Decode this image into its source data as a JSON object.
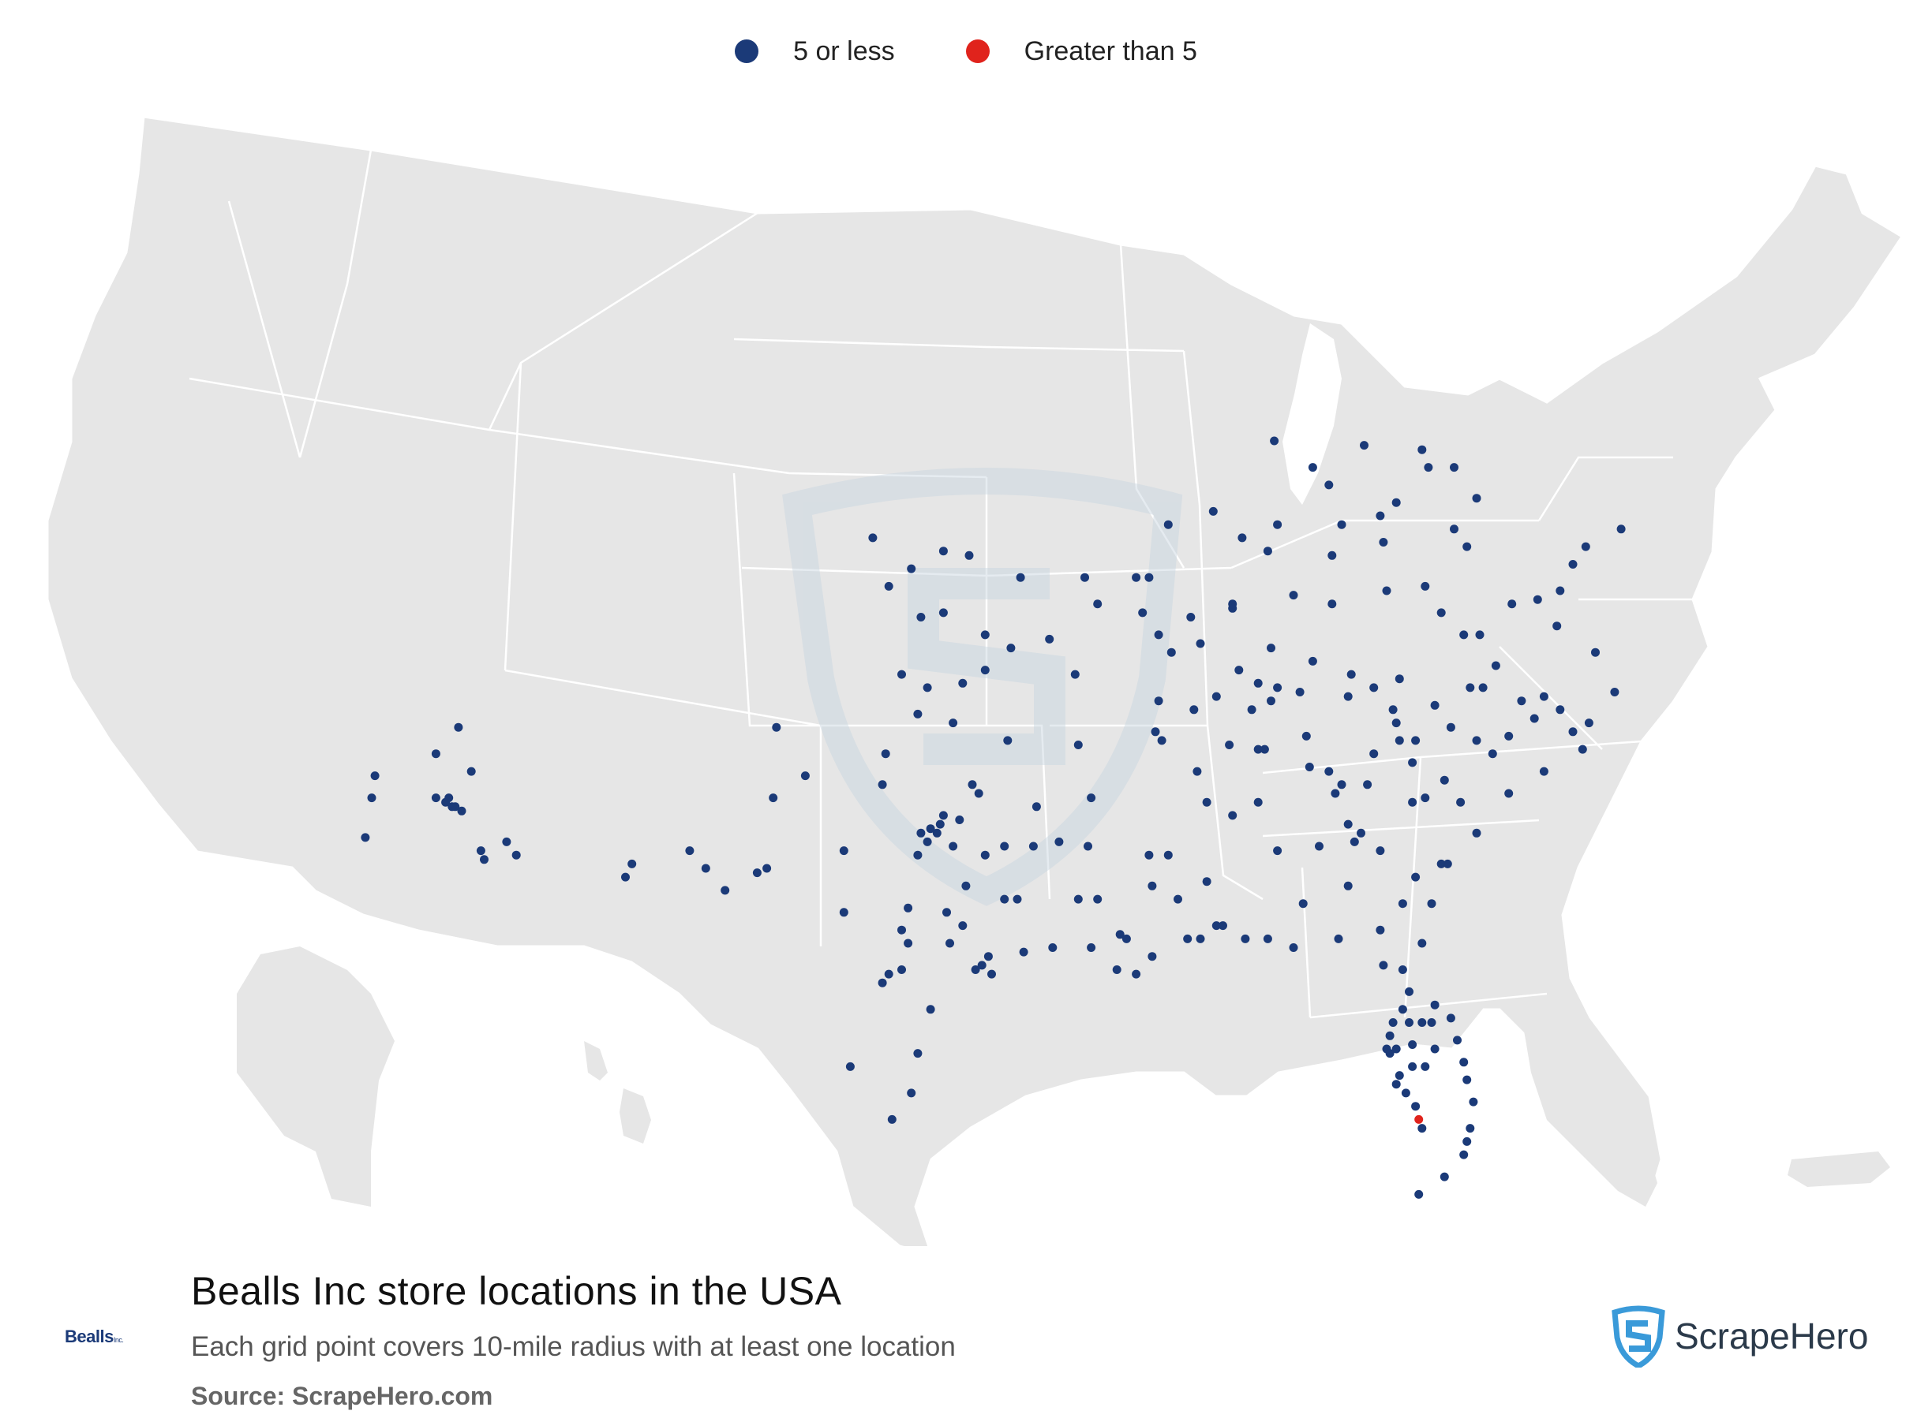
{
  "legend": {
    "items": [
      {
        "label": "5 or less",
        "color": "#1b3a78"
      },
      {
        "label": "Greater than 5",
        "color": "#e0231c"
      }
    ]
  },
  "footer": {
    "title": "Bealls Inc store locations in the USA",
    "subtitle": "Each grid point covers 10-mile radius with at least one location",
    "source": "Source: ScrapeHero.com"
  },
  "brand_logo": {
    "text": "Bealls",
    "suffix": "Inc."
  },
  "provider_logo": {
    "text": "ScrapeHero",
    "icon": "scrapehero-shield-icon"
  },
  "colors": {
    "land": "#e6e6e6",
    "border": "#ffffff",
    "low": "#1b3a78",
    "high": "#e0231c",
    "watermark": "#c7d5e0"
  },
  "map": {
    "type": "point-map",
    "region": "USA",
    "classes": [
      "5 or less",
      "Greater than 5"
    ],
    "high_points": [
      [
        -81.8,
        26.3
      ]
    ],
    "low_points": [
      [
        -114.6,
        32.7
      ],
      [
        -114.4,
        33.6
      ],
      [
        -114.3,
        34.1
      ],
      [
        -112.1,
        33.5
      ],
      [
        -111.8,
        33.4
      ],
      [
        -111.9,
        33.4
      ],
      [
        -111.6,
        33.3
      ],
      [
        -112.4,
        33.6
      ],
      [
        -110.9,
        32.2
      ],
      [
        -111.0,
        32.4
      ],
      [
        -109.9,
        32.3
      ],
      [
        -110.2,
        32.6
      ],
      [
        -111.7,
        35.2
      ],
      [
        -112.4,
        34.6
      ],
      [
        -111.3,
        34.2
      ],
      [
        -112.0,
        33.6
      ],
      [
        -106.5,
        31.8
      ],
      [
        -106.3,
        32.1
      ],
      [
        -104.5,
        32.4
      ],
      [
        -104.0,
        32.0
      ],
      [
        -103.4,
        31.5
      ],
      [
        -102.4,
        31.9
      ],
      [
        -102.1,
        32.0
      ],
      [
        -101.9,
        33.6
      ],
      [
        -101.8,
        35.2
      ],
      [
        -100.9,
        34.1
      ],
      [
        -99.7,
        32.4
      ],
      [
        -99.7,
        31.0
      ],
      [
        -98.5,
        33.9
      ],
      [
        -97.3,
        32.8
      ],
      [
        -97.0,
        32.9
      ],
      [
        -96.8,
        32.8
      ],
      [
        -96.7,
        33.0
      ],
      [
        -97.1,
        32.6
      ],
      [
        -96.6,
        33.2
      ],
      [
        -96.3,
        32.5
      ],
      [
        -97.4,
        32.3
      ],
      [
        -97.7,
        31.1
      ],
      [
        -97.7,
        30.3
      ],
      [
        -97.9,
        30.6
      ],
      [
        -98.5,
        29.4
      ],
      [
        -98.3,
        29.6
      ],
      [
        -97.9,
        29.7
      ],
      [
        -97.0,
        28.8
      ],
      [
        -97.4,
        27.8
      ],
      [
        -97.6,
        26.9
      ],
      [
        -98.2,
        26.3
      ],
      [
        -99.5,
        27.5
      ],
      [
        -95.4,
        29.8
      ],
      [
        -95.6,
        29.7
      ],
      [
        -95.1,
        29.6
      ],
      [
        -95.2,
        30.0
      ],
      [
        -94.1,
        30.1
      ],
      [
        -94.7,
        31.3
      ],
      [
        -95.3,
        32.3
      ],
      [
        -94.7,
        32.5
      ],
      [
        -96.5,
        31.0
      ],
      [
        -96.0,
        30.7
      ],
      [
        -96.4,
        30.3
      ],
      [
        -95.9,
        31.6
      ],
      [
        -94.3,
        31.3
      ],
      [
        -95.5,
        33.7
      ],
      [
        -96.1,
        33.1
      ],
      [
        -95.7,
        33.9
      ],
      [
        -98.4,
        34.6
      ],
      [
        -97.4,
        35.5
      ],
      [
        -97.1,
        36.1
      ],
      [
        -96.0,
        36.2
      ],
      [
        -95.3,
        36.5
      ],
      [
        -97.9,
        36.4
      ],
      [
        -94.6,
        34.9
      ],
      [
        -96.3,
        35.3
      ],
      [
        -97.3,
        37.7
      ],
      [
        -96.6,
        37.8
      ],
      [
        -95.3,
        37.3
      ],
      [
        -94.5,
        37.0
      ],
      [
        -93.3,
        37.2
      ],
      [
        -92.2,
        38.6
      ],
      [
        -91.8,
        38.0
      ],
      [
        -94.2,
        38.6
      ],
      [
        -95.8,
        39.1
      ],
      [
        -96.6,
        39.2
      ],
      [
        -98.3,
        38.4
      ],
      [
        -98.8,
        39.5
      ],
      [
        -97.6,
        38.8
      ],
      [
        -92.5,
        36.4
      ],
      [
        -92.4,
        34.8
      ],
      [
        -92.0,
        33.6
      ],
      [
        -93.7,
        33.4
      ],
      [
        -93.8,
        32.5
      ],
      [
        -93.0,
        32.6
      ],
      [
        -92.1,
        32.5
      ],
      [
        -91.8,
        31.3
      ],
      [
        -92.4,
        31.3
      ],
      [
        -91.1,
        30.5
      ],
      [
        -90.1,
        30.0
      ],
      [
        -90.9,
        30.4
      ],
      [
        -93.2,
        30.2
      ],
      [
        -92.0,
        30.2
      ],
      [
        -91.2,
        29.7
      ],
      [
        -90.6,
        29.6
      ],
      [
        -90.1,
        31.6
      ],
      [
        -89.3,
        31.3
      ],
      [
        -89.0,
        30.4
      ],
      [
        -88.6,
        30.4
      ],
      [
        -88.4,
        31.7
      ],
      [
        -89.6,
        32.3
      ],
      [
        -90.2,
        32.3
      ],
      [
        -88.7,
        34.2
      ],
      [
        -88.4,
        33.5
      ],
      [
        -89.8,
        34.9
      ],
      [
        -90.0,
        35.1
      ],
      [
        -89.9,
        35.8
      ],
      [
        -88.8,
        35.6
      ],
      [
        -87.7,
        34.8
      ],
      [
        -86.8,
        34.7
      ],
      [
        -86.6,
        34.7
      ],
      [
        -86.8,
        33.5
      ],
      [
        -87.6,
        33.2
      ],
      [
        -86.2,
        32.4
      ],
      [
        -85.4,
        31.2
      ],
      [
        -87.9,
        30.7
      ],
      [
        -88.1,
        30.7
      ],
      [
        -87.2,
        30.4
      ],
      [
        -86.5,
        30.4
      ],
      [
        -85.7,
        30.2
      ],
      [
        -84.3,
        30.4
      ],
      [
        -84.0,
        31.6
      ],
      [
        -83.8,
        32.6
      ],
      [
        -84.9,
        32.5
      ],
      [
        -84.4,
        33.7
      ],
      [
        -84.2,
        33.9
      ],
      [
        -83.4,
        33.9
      ],
      [
        -82.0,
        33.5
      ],
      [
        -81.1,
        32.1
      ],
      [
        -81.4,
        31.2
      ],
      [
        -81.7,
        30.3
      ],
      [
        -82.3,
        29.7
      ],
      [
        -82.1,
        29.2
      ],
      [
        -81.7,
        28.5
      ],
      [
        -81.4,
        28.5
      ],
      [
        -81.3,
        28.9
      ],
      [
        -80.8,
        28.6
      ],
      [
        -80.6,
        28.1
      ],
      [
        -80.4,
        27.6
      ],
      [
        -80.3,
        27.2
      ],
      [
        -80.1,
        26.7
      ],
      [
        -80.2,
        26.1
      ],
      [
        -80.3,
        25.8
      ],
      [
        -80.4,
        25.5
      ],
      [
        -81.0,
        25.0
      ],
      [
        -81.8,
        24.6
      ],
      [
        -82.5,
        27.9
      ],
      [
        -82.7,
        27.8
      ],
      [
        -82.4,
        27.3
      ],
      [
        -82.5,
        27.1
      ],
      [
        -81.9,
        26.6
      ],
      [
        -81.7,
        26.1
      ],
      [
        -82.6,
        28.5
      ],
      [
        -82.7,
        28.2
      ],
      [
        -82.0,
        28.0
      ],
      [
        -81.6,
        27.5
      ],
      [
        -81.3,
        27.9
      ],
      [
        -82.8,
        27.9
      ],
      [
        -82.2,
        26.9
      ],
      [
        -82.0,
        27.5
      ],
      [
        -82.3,
        28.8
      ],
      [
        -82.1,
        28.5
      ],
      [
        -85.7,
        38.2
      ],
      [
        -84.5,
        38.0
      ],
      [
        -86.4,
        37.0
      ],
      [
        -88.6,
        37.1
      ],
      [
        -87.6,
        37.9
      ],
      [
        -86.8,
        36.2
      ],
      [
        -86.4,
        35.8
      ],
      [
        -85.3,
        35.0
      ],
      [
        -84.0,
        35.9
      ],
      [
        -82.4,
        36.3
      ],
      [
        -85.1,
        36.7
      ],
      [
        -87.4,
        36.5
      ],
      [
        -87.0,
        35.6
      ],
      [
        -88.1,
        35.9
      ],
      [
        -86.2,
        36.1
      ],
      [
        -85.5,
        36.0
      ],
      [
        -83.9,
        36.4
      ],
      [
        -83.2,
        36.1
      ],
      [
        -82.6,
        35.6
      ],
      [
        -82.5,
        35.3
      ],
      [
        -81.3,
        35.7
      ],
      [
        -80.8,
        35.2
      ],
      [
        -80.2,
        36.1
      ],
      [
        -79.8,
        36.1
      ],
      [
        -78.6,
        35.8
      ],
      [
        -77.9,
        34.2
      ],
      [
        -77.4,
        35.6
      ],
      [
        -79.0,
        35.0
      ],
      [
        -80.0,
        34.9
      ],
      [
        -81.0,
        34.0
      ],
      [
        -82.4,
        34.9
      ],
      [
        -81.9,
        34.9
      ],
      [
        -80.0,
        32.8
      ],
      [
        -79.0,
        33.7
      ],
      [
        -80.5,
        33.5
      ],
      [
        -81.6,
        33.6
      ],
      [
        -80.9,
        32.1
      ],
      [
        -81.9,
        31.8
      ],
      [
        -83.6,
        32.8
      ],
      [
        -84.0,
        33.0
      ],
      [
        -84.6,
        34.2
      ],
      [
        -85.2,
        34.3
      ],
      [
        -83.2,
        34.6
      ],
      [
        -82.0,
        34.4
      ],
      [
        -83.0,
        32.4
      ],
      [
        -82.3,
        31.2
      ],
      [
        -83.0,
        30.6
      ],
      [
        -82.9,
        29.8
      ],
      [
        -86.5,
        39.2
      ],
      [
        -86.2,
        39.8
      ],
      [
        -85.1,
        41.1
      ],
      [
        -86.3,
        41.7
      ],
      [
        -87.3,
        39.5
      ],
      [
        -87.6,
        38.0
      ],
      [
        -84.5,
        39.1
      ],
      [
        -84.2,
        39.8
      ],
      [
        -83.0,
        40.0
      ],
      [
        -82.5,
        40.3
      ],
      [
        -81.5,
        41.1
      ],
      [
        -81.7,
        41.5
      ],
      [
        -80.7,
        41.1
      ],
      [
        -83.5,
        41.6
      ],
      [
        -84.6,
        40.7
      ],
      [
        -82.9,
        39.4
      ],
      [
        -81.6,
        38.4
      ],
      [
        -80.7,
        39.7
      ],
      [
        -80.0,
        40.4
      ],
      [
        -79.9,
        37.3
      ],
      [
        -78.9,
        38.0
      ],
      [
        -77.5,
        37.5
      ],
      [
        -76.3,
        36.9
      ],
      [
        -77.4,
        38.3
      ],
      [
        -76.6,
        39.3
      ],
      [
        -77.0,
        38.9
      ],
      [
        -75.5,
        39.7
      ],
      [
        -80.3,
        39.3
      ],
      [
        -81.1,
        37.8
      ],
      [
        -82.8,
        38.3
      ],
      [
        -79.4,
        36.6
      ],
      [
        -78.1,
        38.1
      ],
      [
        -77.0,
        35.1
      ],
      [
        -76.7,
        34.7
      ],
      [
        -75.7,
        36.0
      ],
      [
        -76.5,
        35.3
      ],
      [
        -78.2,
        35.4
      ],
      [
        -79.5,
        34.6
      ],
      [
        -77.9,
        35.9
      ],
      [
        -80.4,
        37.3
      ],
      [
        -90.6,
        38.6
      ],
      [
        -90.2,
        38.6
      ],
      [
        -90.4,
        37.8
      ],
      [
        -89.6,
        39.8
      ],
      [
        -88.2,
        40.1
      ],
      [
        -89.5,
        36.9
      ],
      [
        -89.9,
        37.3
      ],
      [
        -88.9,
        37.7
      ]
    ]
  }
}
